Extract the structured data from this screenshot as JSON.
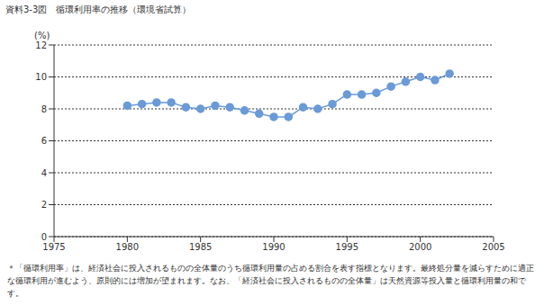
{
  "chart_data": {
    "type": "line",
    "title": "資料3-3図　循環利用率の推移（環境省試算）",
    "ylabel": "(%)",
    "note": "＊「循環利用率」は、経済社会に投入されるものの全体量のうち循環利用量の占める割合を表す指標となります。最終処分量を減らすために適正な循環利用が進むよう、原則的には増加が望まれます。なお、「経済社会に投入されるものの全体量」は天然資源等投入量と循環利用量の和です。",
    "x": [
      1980,
      1981,
      1982,
      1983,
      1984,
      1985,
      1986,
      1987,
      1988,
      1989,
      1990,
      1991,
      1992,
      1993,
      1994,
      1995,
      1996,
      1997,
      1998,
      1999,
      2000,
      2001,
      2002
    ],
    "values": [
      8.2,
      8.3,
      8.4,
      8.4,
      8.1,
      8.0,
      8.2,
      8.1,
      7.9,
      7.7,
      7.5,
      7.5,
      8.1,
      8.0,
      8.3,
      8.9,
      8.9,
      9.0,
      9.4,
      9.7,
      10.0,
      9.8,
      10.2
    ],
    "color": "#6a9ad8",
    "marker": "circle",
    "xlim": [
      1975,
      2005
    ],
    "xticks": [
      1975,
      1980,
      1985,
      1990,
      1995,
      2000,
      2005
    ],
    "ylim": [
      0,
      12
    ],
    "yticks": [
      0,
      2,
      4,
      6,
      8,
      10,
      12
    ],
    "grid": true
  }
}
